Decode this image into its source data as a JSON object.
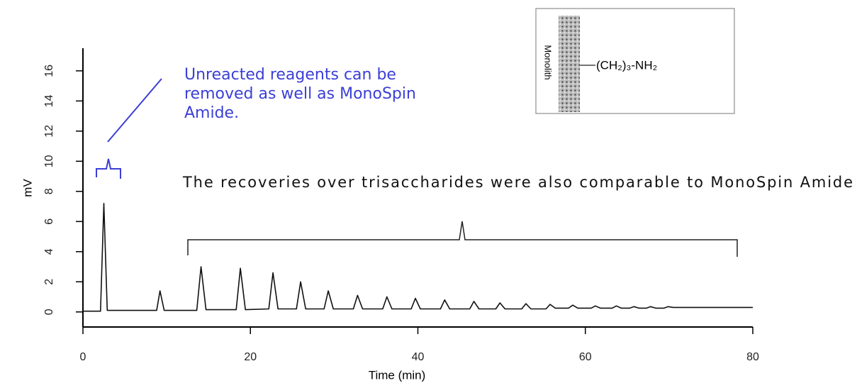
{
  "chart_data": {
    "type": "line",
    "x_label": "Time (min)",
    "y_label": "mV",
    "xlim": [
      0,
      80
    ],
    "xticks": [
      0,
      20,
      40,
      60,
      80
    ],
    "ylim": [
      -1,
      17.5
    ],
    "yticks": [
      0,
      2,
      4,
      6,
      8,
      10,
      12,
      14,
      16
    ],
    "annotations": [
      "Unreacted reagents can be removed as well as MonoSpin Amide.",
      "The recoveries over trisaccharides were also comparable to MonoSpin Amide"
    ],
    "inset": {
      "support_label": "Monolith",
      "group_label": "(CH₂)₃-NH₂"
    },
    "series": [
      {
        "color": "#111111",
        "x": [
          0,
          2.1,
          2.5,
          2.9,
          8.8,
          9.2,
          9.7,
          13.6,
          14.1,
          14.7,
          18.3,
          18.8,
          19.4,
          22.2,
          22.7,
          23.3,
          25.5,
          26,
          26.6,
          28.8,
          29.3,
          29.9,
          32.3,
          32.8,
          33.4,
          35.8,
          36.3,
          36.9,
          39.2,
          39.7,
          40.3,
          42.7,
          43.2,
          43.8,
          46.2,
          46.7,
          47.3,
          49.3,
          49.8,
          50.4,
          52.4,
          52.9,
          53.5,
          55.3,
          55.8,
          56.4,
          58,
          58.5,
          59.1,
          60.7,
          61.2,
          61.8,
          63.2,
          63.7,
          64.3,
          65.3,
          65.8,
          66.4,
          67.3,
          67.8,
          68.4,
          69.4,
          69.9,
          70.5,
          80
        ],
        "values": [
          0.05,
          0.05,
          7.2,
          0.1,
          0.1,
          1.4,
          0.1,
          0.1,
          3.0,
          0.15,
          0.15,
          2.9,
          0.15,
          0.2,
          2.6,
          0.2,
          0.2,
          2.0,
          0.2,
          0.2,
          1.4,
          0.2,
          0.2,
          1.1,
          0.2,
          0.2,
          1.0,
          0.2,
          0.2,
          0.9,
          0.2,
          0.2,
          0.8,
          0.2,
          0.2,
          0.7,
          0.2,
          0.2,
          0.6,
          0.2,
          0.2,
          0.55,
          0.2,
          0.2,
          0.5,
          0.25,
          0.25,
          0.45,
          0.25,
          0.25,
          0.4,
          0.25,
          0.25,
          0.4,
          0.25,
          0.25,
          0.35,
          0.25,
          0.25,
          0.35,
          0.25,
          0.25,
          0.35,
          0.3,
          0.3
        ]
      }
    ]
  }
}
